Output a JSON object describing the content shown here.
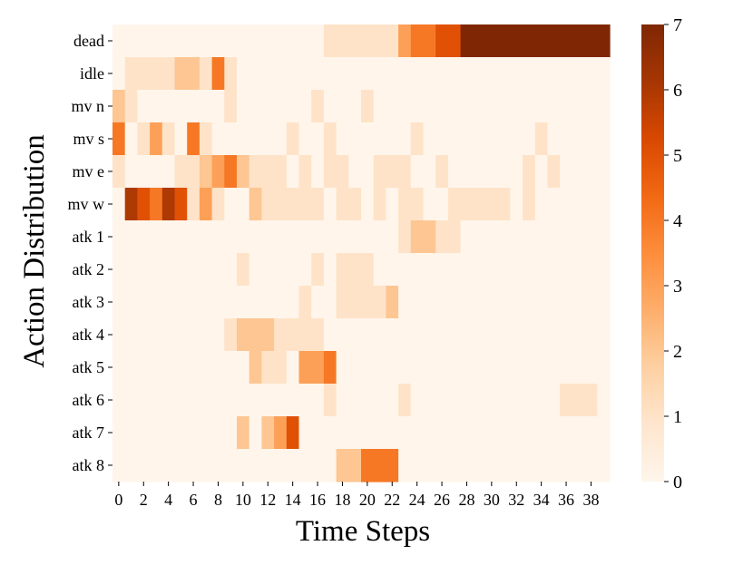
{
  "chart_data": {
    "type": "heatmap",
    "xlabel": "Time Steps",
    "ylabel": "Action Distribution",
    "x": [
      0,
      1,
      2,
      3,
      4,
      5,
      6,
      7,
      8,
      9,
      10,
      11,
      12,
      13,
      14,
      15,
      16,
      17,
      18,
      19,
      20,
      21,
      22,
      23,
      24,
      25,
      26,
      27,
      28,
      29,
      30,
      31,
      32,
      33,
      34,
      35,
      36,
      37,
      38,
      39
    ],
    "x_tick_labels": [
      "0",
      "2",
      "4",
      "6",
      "8",
      "10",
      "12",
      "14",
      "16",
      "18",
      "20",
      "22",
      "24",
      "26",
      "28",
      "30",
      "32",
      "34",
      "36",
      "38"
    ],
    "y": [
      "dead",
      "idle",
      "mv n",
      "mv s",
      "mv e",
      "mv w",
      "atk 1",
      "atk 2",
      "atk 3",
      "atk 4",
      "atk 5",
      "atk 6",
      "atk 7",
      "atk 8"
    ],
    "values": [
      [
        0,
        0,
        0,
        0,
        0,
        0,
        0,
        0,
        0,
        0,
        0,
        0,
        0,
        0,
        0,
        0,
        0,
        1,
        1,
        1,
        1,
        1,
        1,
        3,
        4,
        4,
        5,
        5,
        7,
        7,
        7,
        7,
        7,
        7,
        7,
        7,
        7,
        7,
        7,
        7
      ],
      [
        0,
        1,
        1,
        1,
        1,
        2,
        2,
        1,
        4,
        1,
        0,
        0,
        0,
        0,
        0,
        0,
        0,
        0,
        0,
        0,
        0,
        0,
        0,
        0,
        0,
        0,
        0,
        0,
        0,
        0,
        0,
        0,
        0,
        0,
        0,
        0,
        0,
        0,
        0,
        0
      ],
      [
        2,
        1,
        0,
        0,
        0,
        0,
        0,
        0,
        0,
        1,
        0,
        0,
        0,
        0,
        0,
        0,
        1,
        0,
        0,
        0,
        1,
        0,
        0,
        0,
        0,
        0,
        0,
        0,
        0,
        0,
        0,
        0,
        0,
        0,
        0,
        0,
        0,
        0,
        0,
        0
      ],
      [
        4,
        0,
        1,
        3,
        1,
        0,
        4,
        1,
        0,
        0,
        0,
        0,
        0,
        0,
        1,
        0,
        0,
        1,
        0,
        0,
        0,
        0,
        0,
        0,
        1,
        0,
        0,
        0,
        0,
        0,
        0,
        0,
        0,
        0,
        1,
        0,
        0,
        0,
        0,
        0
      ],
      [
        1,
        0,
        0,
        0,
        0,
        1,
        1,
        2,
        3,
        4,
        2,
        1,
        1,
        1,
        0,
        1,
        0,
        1,
        1,
        0,
        0,
        1,
        1,
        1,
        0,
        0,
        1,
        0,
        0,
        0,
        0,
        0,
        0,
        1,
        0,
        1,
        0,
        0,
        0,
        0
      ],
      [
        0,
        6,
        5,
        4,
        6,
        5,
        1,
        3,
        1,
        0,
        0,
        2,
        1,
        1,
        1,
        1,
        1,
        0,
        1,
        1,
        0,
        1,
        0,
        1,
        1,
        0,
        0,
        1,
        1,
        1,
        1,
        1,
        0,
        1,
        0,
        0,
        0,
        0,
        0,
        0
      ],
      [
        0,
        0,
        0,
        0,
        0,
        0,
        0,
        0,
        0,
        0,
        0,
        0,
        0,
        0,
        0,
        0,
        0,
        0,
        0,
        0,
        0,
        0,
        0,
        1,
        2,
        2,
        1,
        1,
        0,
        0,
        0,
        0,
        0,
        0,
        0,
        0,
        0,
        0,
        0,
        0
      ],
      [
        0,
        0,
        0,
        0,
        0,
        0,
        0,
        0,
        0,
        0,
        1,
        0,
        0,
        0,
        0,
        0,
        1,
        0,
        1,
        1,
        1,
        0,
        0,
        0,
        0,
        0,
        0,
        0,
        0,
        0,
        0,
        0,
        0,
        0,
        0,
        0,
        0,
        0,
        0,
        0
      ],
      [
        0,
        0,
        0,
        0,
        0,
        0,
        0,
        0,
        0,
        0,
        0,
        0,
        0,
        0,
        0,
        1,
        0,
        0,
        1,
        1,
        1,
        1,
        2,
        0,
        0,
        0,
        0,
        0,
        0,
        0,
        0,
        0,
        0,
        0,
        0,
        0,
        0,
        0,
        0,
        0
      ],
      [
        0,
        0,
        0,
        0,
        0,
        0,
        0,
        0,
        0,
        1,
        2,
        2,
        2,
        1,
        1,
        1,
        1,
        0,
        0,
        0,
        0,
        0,
        0,
        0,
        0,
        0,
        0,
        0,
        0,
        0,
        0,
        0,
        0,
        0,
        0,
        0,
        0,
        0,
        0,
        0
      ],
      [
        0,
        0,
        0,
        0,
        0,
        0,
        0,
        0,
        0,
        0,
        0,
        2,
        1,
        1,
        0,
        3,
        3,
        4,
        0,
        0,
        0,
        0,
        0,
        0,
        0,
        0,
        0,
        0,
        0,
        0,
        0,
        0,
        0,
        0,
        0,
        0,
        0,
        0,
        0,
        0
      ],
      [
        0,
        0,
        0,
        0,
        0,
        0,
        0,
        0,
        0,
        0,
        0,
        0,
        0,
        0,
        0,
        0,
        0,
        1,
        0,
        0,
        0,
        0,
        0,
        1,
        0,
        0,
        0,
        0,
        0,
        0,
        0,
        0,
        0,
        0,
        0,
        0,
        1,
        1,
        1,
        0
      ],
      [
        0,
        0,
        0,
        0,
        0,
        0,
        0,
        0,
        0,
        0,
        2,
        0,
        2,
        3,
        5,
        0,
        0,
        0,
        0,
        0,
        0,
        0,
        0,
        0,
        0,
        0,
        0,
        0,
        0,
        0,
        0,
        0,
        0,
        0,
        0,
        0,
        0,
        0,
        0,
        0
      ],
      [
        0,
        0,
        0,
        0,
        0,
        0,
        0,
        0,
        0,
        0,
        0,
        0,
        0,
        0,
        0,
        0,
        0,
        0,
        2,
        2,
        4,
        4,
        4,
        0,
        0,
        0,
        0,
        0,
        0,
        0,
        0,
        0,
        0,
        0,
        0,
        0,
        0,
        0,
        0,
        0
      ]
    ],
    "colorbar": {
      "min": 0,
      "max": 7,
      "ticks": [
        "0",
        "1",
        "2",
        "3",
        "4",
        "5",
        "6",
        "7"
      ],
      "colormap": "Oranges",
      "colors": [
        "#fff5eb",
        "#fee6ce",
        "#fdd0a2",
        "#fdae6b",
        "#fd8d3c",
        "#f16913",
        "#d94801",
        "#a63603",
        "#7f2704"
      ]
    },
    "grid": false,
    "legend": "colorbar-right"
  }
}
